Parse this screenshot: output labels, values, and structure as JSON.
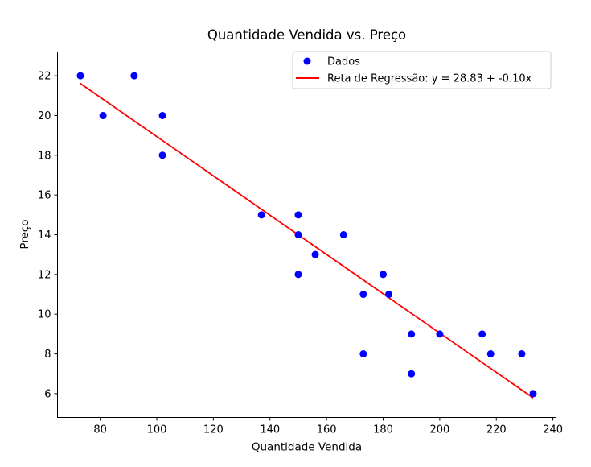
{
  "chart_data": {
    "type": "scatter",
    "title": "Quantidade Vendida vs. Preço",
    "xlabel": "Quantidade Vendida",
    "ylabel": "Preço",
    "xlim": [
      64.9,
      241.1
    ],
    "ylim": [
      4.8,
      23.2
    ],
    "xticks": [
      80,
      100,
      120,
      140,
      160,
      180,
      200,
      220,
      240
    ],
    "yticks": [
      6,
      8,
      10,
      12,
      14,
      16,
      18,
      20,
      22
    ],
    "grid": false,
    "legend_position": "top-right",
    "series": [
      {
        "name": "Dados",
        "kind": "scatter",
        "color": "#0000ff",
        "points": [
          {
            "x": 73,
            "y": 22
          },
          {
            "x": 81,
            "y": 20
          },
          {
            "x": 92,
            "y": 22
          },
          {
            "x": 102,
            "y": 20
          },
          {
            "x": 102,
            "y": 18
          },
          {
            "x": 137,
            "y": 15
          },
          {
            "x": 150,
            "y": 15
          },
          {
            "x": 150,
            "y": 14
          },
          {
            "x": 150,
            "y": 12
          },
          {
            "x": 156,
            "y": 13
          },
          {
            "x": 166,
            "y": 14
          },
          {
            "x": 173,
            "y": 11
          },
          {
            "x": 173,
            "y": 8
          },
          {
            "x": 180,
            "y": 12
          },
          {
            "x": 182,
            "y": 11
          },
          {
            "x": 190,
            "y": 9
          },
          {
            "x": 190,
            "y": 7
          },
          {
            "x": 200,
            "y": 9
          },
          {
            "x": 215,
            "y": 9
          },
          {
            "x": 218,
            "y": 8
          },
          {
            "x": 229,
            "y": 8
          },
          {
            "x": 233,
            "y": 6
          }
        ]
      },
      {
        "name": "Reta de Regressão: y = 28.83 + -0.10x",
        "kind": "line",
        "color": "#ff0000",
        "intercept": 28.83,
        "slope": -0.0989,
        "x_range": [
          73,
          233
        ]
      }
    ]
  }
}
